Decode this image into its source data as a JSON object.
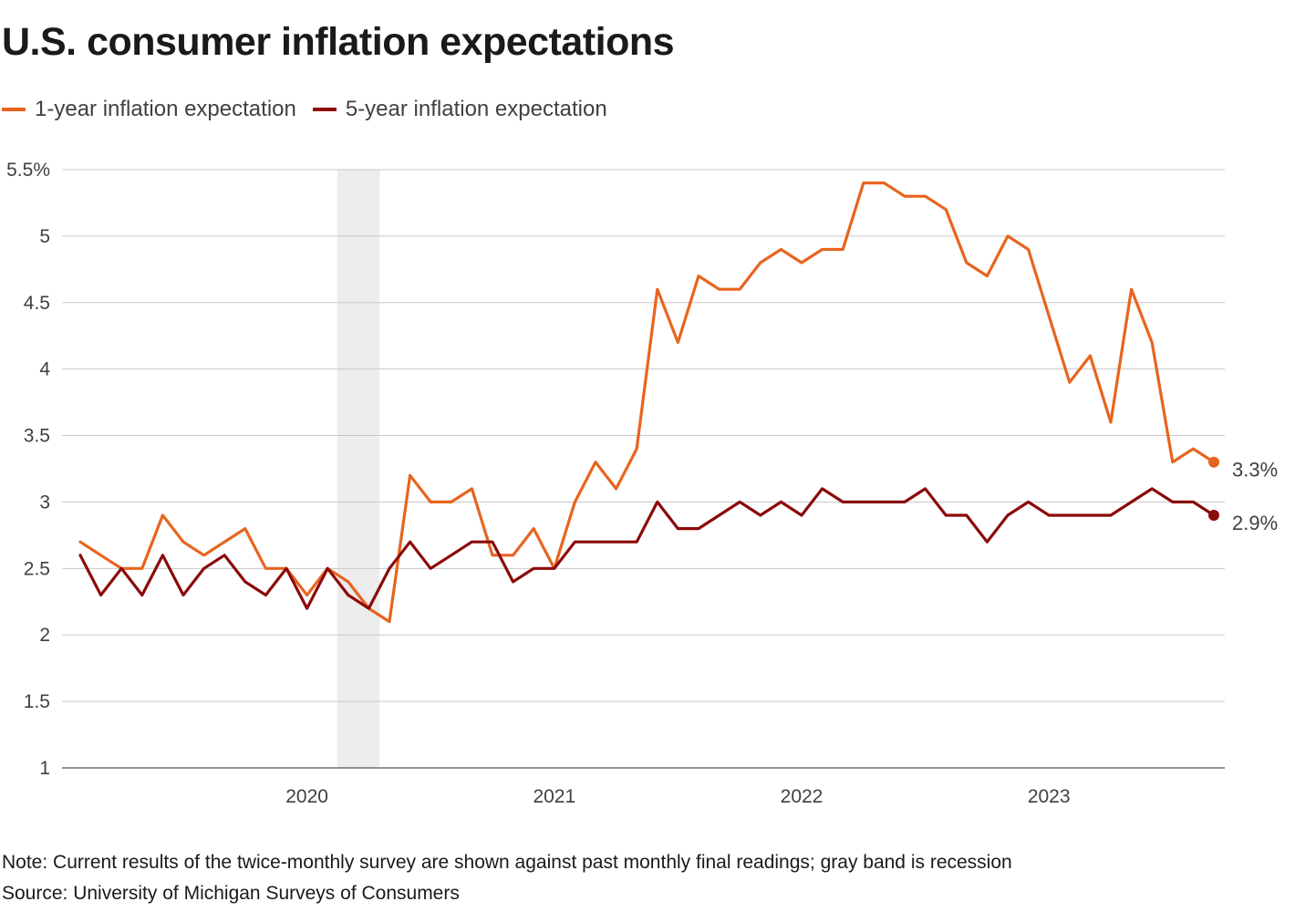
{
  "title": "U.S. consumer inflation expectations",
  "note": "Note: Current results of the twice-monthly survey are shown against past monthly final readings; gray band is recession",
  "source": "Source: University of Michigan Surveys of Consumers",
  "colors": {
    "one_year": "#e8641e",
    "five_year": "#8b0a0a",
    "recession_band": "#ededed",
    "grid": "#c8c8c8"
  },
  "chart_data": {
    "type": "line",
    "title": "U.S. consumer inflation expectations",
    "xlabel": "",
    "ylabel": "",
    "ylim": [
      1,
      5.5
    ],
    "y_ticks": [
      1,
      1.5,
      2,
      2.5,
      3,
      3.5,
      4,
      4.5,
      5,
      5.5
    ],
    "y_tick_labels": [
      "1",
      "1.5",
      "2",
      "2.5",
      "3",
      "3.5",
      "4",
      "4.5",
      "5",
      "5.5%"
    ],
    "x_range": [
      "2019-02",
      "2023-09"
    ],
    "x_ticks": [
      "2020-01",
      "2021-01",
      "2022-01",
      "2023-01"
    ],
    "x_tick_labels": [
      "2020",
      "2021",
      "2022",
      "2023"
    ],
    "x": [
      "2019-02",
      "2019-03",
      "2019-04",
      "2019-05",
      "2019-06",
      "2019-07",
      "2019-08",
      "2019-09",
      "2019-10",
      "2019-11",
      "2019-12",
      "2020-01",
      "2020-02",
      "2020-03",
      "2020-04",
      "2020-05",
      "2020-06",
      "2020-07",
      "2020-08",
      "2020-09",
      "2020-10",
      "2020-11",
      "2020-12",
      "2021-01",
      "2021-02",
      "2021-03",
      "2021-04",
      "2021-05",
      "2021-06",
      "2021-07",
      "2021-08",
      "2021-09",
      "2021-10",
      "2021-11",
      "2021-12",
      "2022-01",
      "2022-02",
      "2022-03",
      "2022-04",
      "2022-05",
      "2022-06",
      "2022-07",
      "2022-08",
      "2022-09",
      "2022-10",
      "2022-11",
      "2022-12",
      "2023-01",
      "2023-02",
      "2023-03",
      "2023-04",
      "2023-05",
      "2023-06",
      "2023-07",
      "2023-08",
      "2023-09"
    ],
    "series": [
      {
        "name": "1-year inflation expectation",
        "color": "#e8641e",
        "values": [
          2.7,
          2.6,
          2.5,
          2.5,
          2.9,
          2.7,
          2.6,
          2.7,
          2.8,
          2.5,
          2.5,
          2.3,
          2.5,
          2.4,
          2.2,
          2.1,
          3.2,
          3.0,
          3.0,
          3.1,
          2.6,
          2.6,
          2.8,
          2.5,
          3.0,
          3.3,
          3.1,
          3.4,
          4.6,
          4.2,
          4.7,
          4.6,
          4.6,
          4.8,
          4.9,
          4.8,
          4.9,
          4.9,
          5.4,
          5.4,
          5.3,
          5.3,
          5.2,
          4.8,
          4.7,
          5.0,
          4.9,
          4.4,
          3.9,
          4.1,
          3.6,
          4.6,
          4.2,
          3.3,
          3.4,
          3.3
        ],
        "end_label": "3.3%"
      },
      {
        "name": "5-year inflation expectation",
        "color": "#8b0a0a",
        "values": [
          2.6,
          2.3,
          2.5,
          2.3,
          2.6,
          2.3,
          2.5,
          2.6,
          2.4,
          2.3,
          2.5,
          2.2,
          2.5,
          2.3,
          2.2,
          2.5,
          2.7,
          2.5,
          2.6,
          2.7,
          2.7,
          2.4,
          2.5,
          2.5,
          2.7,
          2.7,
          2.7,
          2.7,
          3.0,
          2.8,
          2.8,
          2.9,
          3.0,
          2.9,
          3.0,
          2.9,
          3.1,
          3.0,
          3.0,
          3.0,
          3.0,
          3.1,
          2.9,
          2.9,
          2.7,
          2.9,
          3.0,
          2.9,
          2.9,
          2.9,
          2.9,
          3.0,
          3.1,
          3.0,
          3.0,
          2.9
        ],
        "end_label": "2.9%"
      }
    ],
    "shaded_regions": [
      {
        "label": "recession",
        "start": "2020-03",
        "end": "2020-04"
      }
    ],
    "grid": true,
    "legend_position": "top-left"
  }
}
